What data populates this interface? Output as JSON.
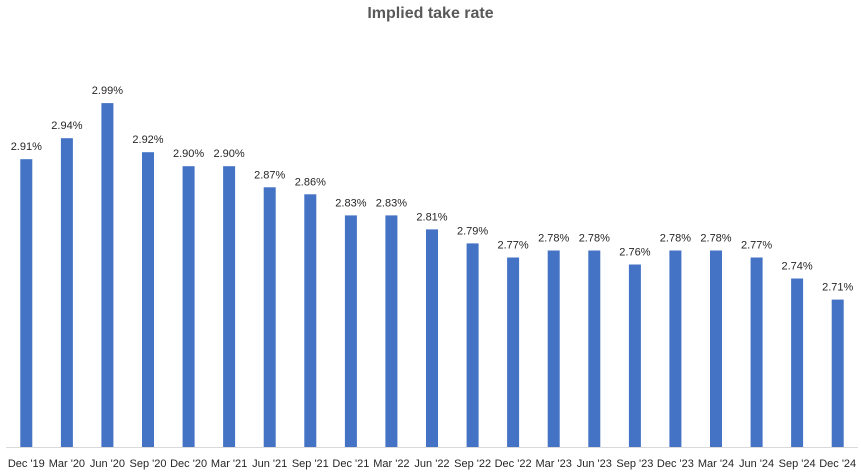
{
  "chart_data": {
    "type": "bar",
    "title": "Implied take rate",
    "xlabel": "",
    "ylabel": "",
    "categories": [
      "Dec '19",
      "Mar '20",
      "Jun '20",
      "Sep '20",
      "Dec '20",
      "Mar '21",
      "Jun '21",
      "Sep '21",
      "Dec '21",
      "Mar '22",
      "Jun '22",
      "Sep '22",
      "Dec '22",
      "Mar '23",
      "Jun '23",
      "Sep '23",
      "Dec '23",
      "Mar '24",
      "Jun '24",
      "Sep '24",
      "Dec '24"
    ],
    "values": [
      2.91,
      2.94,
      2.99,
      2.92,
      2.9,
      2.9,
      2.87,
      2.86,
      2.83,
      2.83,
      2.81,
      2.79,
      2.77,
      2.78,
      2.78,
      2.76,
      2.78,
      2.78,
      2.77,
      2.74,
      2.71
    ],
    "data_labels": [
      "2.91%",
      "2.94%",
      "2.99%",
      "2.92%",
      "2.90%",
      "2.90%",
      "2.87%",
      "2.86%",
      "2.83%",
      "2.83%",
      "2.81%",
      "2.79%",
      "2.77%",
      "2.78%",
      "2.78%",
      "2.76%",
      "2.78%",
      "2.78%",
      "2.77%",
      "2.74%",
      "2.71%"
    ],
    "ylim": [
      2.5,
      3.02
    ],
    "grid": false,
    "legend": "none",
    "bar_color": "#4472C4"
  }
}
